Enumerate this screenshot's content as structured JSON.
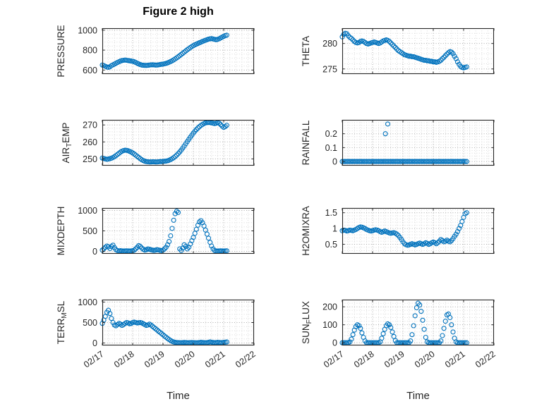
{
  "figure": {
    "title": "Figure 2 high",
    "xlabel": "Time",
    "xlim": [
      0,
      5
    ],
    "x_ticks": {
      "values": [
        0,
        1,
        2,
        3,
        4,
        5
      ],
      "labels": [
        "02/17",
        "02/18",
        "02/19",
        "02/20",
        "02/21",
        "02/22"
      ]
    },
    "marker_color": "#0072BD",
    "axis_color": "#262626",
    "grid_color": "#ababab",
    "minor_grid_color": "#d9d9d9"
  },
  "chart_data": [
    {
      "id": "pressure",
      "type": "scatter",
      "ylabel_parts": [
        {
          "text": "PRESSURE",
          "sub": false
        }
      ],
      "ylim": [
        560,
        1020
      ],
      "ytick_values": [
        600,
        800,
        1000
      ],
      "ytick_labels": [
        "600",
        "800",
        "1000"
      ],
      "series": {
        "x_start": 0,
        "x_step": 0.05,
        "values": [
          650,
          645,
          638,
          630,
          628,
          632,
          645,
          652,
          660,
          668,
          676,
          684,
          690,
          695,
          698,
          700,
          698,
          695,
          693,
          690,
          688,
          683,
          676,
          668,
          661,
          655,
          650,
          648,
          647,
          646,
          648,
          650,
          652,
          653,
          652,
          650,
          650,
          652,
          655,
          658,
          660,
          663,
          667,
          672,
          678,
          685,
          693,
          702,
          712,
          722,
          733,
          745,
          757,
          768,
          780,
          792,
          804,
          815,
          826,
          836,
          845,
          853,
          860,
          867,
          874,
          880,
          887,
          893,
          899,
          905,
          910,
          913,
          915,
          912,
          908,
          905,
          908,
          914,
          922,
          930,
          938,
          945,
          950
        ]
      }
    },
    {
      "id": "theta",
      "type": "scatter",
      "ylabel_parts": [
        {
          "text": "THETA",
          "sub": false
        }
      ],
      "ylim": [
        274,
        283
      ],
      "ytick_values": [
        275,
        280
      ],
      "ytick_labels": [
        "275",
        "280"
      ],
      "series": {
        "x_start": 0,
        "x_step": 0.05,
        "values": [
          281.3,
          281.8,
          282.0,
          281.9,
          281.5,
          281.2,
          281.0,
          280.7,
          280.4,
          280.2,
          280.1,
          280.2,
          280.4,
          280.5,
          280.4,
          280.2,
          280.0,
          279.9,
          280.0,
          280.1,
          280.2,
          280.3,
          280.2,
          280.1,
          280.0,
          280.1,
          280.3,
          280.5,
          280.6,
          280.7,
          280.6,
          280.4,
          280.1,
          279.8,
          279.5,
          279.2,
          278.9,
          278.6,
          278.4,
          278.2,
          278.0,
          277.8,
          277.7,
          277.6,
          277.5,
          277.5,
          277.4,
          277.4,
          277.3,
          277.2,
          277.1,
          277.0,
          276.9,
          276.8,
          276.7,
          276.7,
          276.6,
          276.6,
          276.5,
          276.5,
          276.4,
          276.4,
          276.3,
          276.4,
          276.5,
          276.7,
          277.0,
          277.3,
          277.6,
          277.9,
          278.2,
          278.4,
          278.3,
          278.0,
          277.5,
          277.0,
          276.4,
          275.9,
          275.5,
          275.3,
          275.2,
          275.3,
          275.4
        ]
      }
    },
    {
      "id": "air-temp",
      "type": "scatter",
      "ylabel_parts": [
        {
          "text": "AIR",
          "sub": false
        },
        {
          "text": "T",
          "sub": true
        },
        {
          "text": "EMP",
          "sub": false
        }
      ],
      "ylim": [
        246,
        273
      ],
      "ytick_values": [
        250,
        260,
        270
      ],
      "ytick_labels": [
        "250",
        "260",
        "270"
      ],
      "series": {
        "x_start": 0,
        "x_step": 0.05,
        "values": [
          250.5,
          250.2,
          250.0,
          249.8,
          249.9,
          250.1,
          250.4,
          250.8,
          251.3,
          251.9,
          252.6,
          253.3,
          254.0,
          254.5,
          254.9,
          255.1,
          255.0,
          254.8,
          254.4,
          254.0,
          253.5,
          252.9,
          252.2,
          251.5,
          250.8,
          250.1,
          249.5,
          249.0,
          248.6,
          248.4,
          248.3,
          248.2,
          248.2,
          248.3,
          248.3,
          248.2,
          248.2,
          248.3,
          248.4,
          248.4,
          248.5,
          248.6,
          248.7,
          248.9,
          249.2,
          249.6,
          250.1,
          250.7,
          251.4,
          252.2,
          253.1,
          254.1,
          255.2,
          256.4,
          257.6,
          258.9,
          260.2,
          261.5,
          262.8,
          264.0,
          265.2,
          266.3,
          267.3,
          268.2,
          269.0,
          269.7,
          270.3,
          270.8,
          271.2,
          271.4,
          271.5,
          271.4,
          271.2,
          271.0,
          270.8,
          271.0,
          271.3,
          271.0,
          270.2,
          269.3,
          268.6,
          269.0,
          269.8
        ]
      }
    },
    {
      "id": "rainfall",
      "type": "scatter",
      "ylabel_parts": [
        {
          "text": "RAINFALL",
          "sub": false
        }
      ],
      "ylim": [
        -0.03,
        0.3
      ],
      "ytick_values": [
        0,
        0.1,
        0.2
      ],
      "ytick_labels": [
        "0",
        "0.1",
        "0.2"
      ],
      "series": {
        "x_start": 0,
        "x_step": 0.05,
        "values": [
          0,
          0,
          0,
          0,
          0,
          0,
          0,
          0,
          0,
          0,
          0,
          0,
          0,
          0,
          0,
          0,
          0,
          0,
          0,
          0,
          0,
          0,
          0,
          0,
          0,
          0,
          0,
          0,
          0,
          0,
          0,
          0,
          0,
          0,
          0,
          0,
          0,
          0,
          0,
          0,
          0,
          0,
          0,
          0,
          0,
          0,
          0,
          0,
          0,
          0,
          0,
          0,
          0,
          0,
          0,
          0,
          0,
          0,
          0,
          0,
          0,
          0,
          0,
          0,
          0,
          0,
          0,
          0,
          0,
          0,
          0,
          0,
          0,
          0,
          0,
          0,
          0,
          0,
          0,
          0,
          0,
          0,
          0
        ]
      },
      "extra_points": [
        [
          1.42,
          0.2
        ],
        [
          1.5,
          0.27
        ]
      ]
    },
    {
      "id": "mixdepth",
      "type": "scatter",
      "ylabel_parts": [
        {
          "text": "MIXDEPTH",
          "sub": false
        }
      ],
      "ylim": [
        -60,
        1060
      ],
      "ytick_values": [
        0,
        500,
        1000
      ],
      "ytick_labels": [
        "0",
        "500",
        "1000"
      ],
      "series": {
        "x_start": 0,
        "x_step": 0.05,
        "values": [
          30,
          60,
          100,
          130,
          110,
          70,
          120,
          150,
          90,
          40,
          20,
          10,
          15,
          10,
          8,
          10,
          12,
          10,
          8,
          10,
          15,
          30,
          60,
          100,
          140,
          120,
          80,
          50,
          30,
          40,
          60,
          50,
          40,
          30,
          25,
          30,
          40,
          35,
          25,
          20,
          30,
          60,
          100,
          160,
          240,
          380,
          560,
          760,
          920,
          980,
          950,
          60,
          20,
          80,
          160,
          120,
          60,
          100,
          180,
          260,
          340,
          440,
          540,
          640,
          720,
          750,
          700,
          620,
          520,
          420,
          320,
          220,
          130,
          60,
          20,
          10,
          8,
          10,
          12,
          10,
          8,
          10,
          12
        ]
      }
    },
    {
      "id": "h2omixra",
      "type": "scatter",
      "ylabel_parts": [
        {
          "text": "H2OMIXRA",
          "sub": false
        }
      ],
      "ylim": [
        0.2,
        1.65
      ],
      "ytick_values": [
        0.5,
        1,
        1.5
      ],
      "ytick_labels": [
        "0.5",
        "1",
        "1.5"
      ],
      "series": {
        "x_start": 0,
        "x_step": 0.05,
        "values": [
          0.93,
          0.95,
          0.94,
          0.92,
          0.93,
          0.95,
          0.94,
          0.93,
          0.95,
          0.97,
          1.0,
          1.03,
          1.05,
          1.04,
          1.02,
          1.0,
          0.97,
          0.95,
          0.93,
          0.92,
          0.93,
          0.95,
          0.96,
          0.95,
          0.93,
          0.9,
          0.88,
          0.9,
          0.92,
          0.9,
          0.88,
          0.86,
          0.85,
          0.86,
          0.87,
          0.85,
          0.82,
          0.78,
          0.72,
          0.65,
          0.58,
          0.52,
          0.49,
          0.47,
          0.48,
          0.5,
          0.52,
          0.5,
          0.48,
          0.5,
          0.52,
          0.54,
          0.52,
          0.5,
          0.52,
          0.55,
          0.53,
          0.5,
          0.52,
          0.55,
          0.57,
          0.55,
          0.52,
          0.55,
          0.6,
          0.65,
          0.62,
          0.58,
          0.6,
          0.63,
          0.6,
          0.58,
          0.62,
          0.68,
          0.75,
          0.82,
          0.9,
          1.0,
          1.1,
          1.22,
          1.35,
          1.47,
          1.5
        ]
      }
    },
    {
      "id": "terr-msl",
      "type": "scatter",
      "ylabel_parts": [
        {
          "text": "TERR",
          "sub": false
        },
        {
          "text": "M",
          "sub": true
        },
        {
          "text": "SL",
          "sub": false
        }
      ],
      "ylim": [
        -60,
        1060
      ],
      "ytick_values": [
        0,
        500,
        1000
      ],
      "ytick_labels": [
        "0",
        "500",
        "1000"
      ],
      "series": {
        "x_start": 0,
        "x_step": 0.05,
        "values": [
          480,
          560,
          650,
          750,
          800,
          720,
          600,
          500,
          440,
          420,
          450,
          480,
          460,
          430,
          450,
          480,
          500,
          490,
          470,
          480,
          500,
          510,
          500,
          490,
          495,
          500,
          490,
          470,
          450,
          430,
          440,
          460,
          440,
          410,
          380,
          350,
          320,
          290,
          260,
          230,
          200,
          170,
          140,
          110,
          85,
          60,
          40,
          25,
          15,
          10,
          8,
          6,
          5,
          8,
          12,
          10,
          6,
          5,
          8,
          10,
          8,
          5,
          4,
          6,
          10,
          15,
          12,
          8,
          5,
          8,
          15,
          25,
          20,
          12,
          8,
          10,
          15,
          12,
          8,
          10,
          15,
          20,
          25
        ]
      }
    },
    {
      "id": "sun-flux",
      "type": "scatter",
      "ylabel_parts": [
        {
          "text": "SUN",
          "sub": false
        },
        {
          "text": "F",
          "sub": true
        },
        {
          "text": "LUX",
          "sub": false
        }
      ],
      "ylim": [
        -15,
        240
      ],
      "ytick_values": [
        0,
        100,
        200
      ],
      "ytick_labels": [
        "0",
        "100",
        "200"
      ],
      "series": {
        "x_start": 0,
        "x_step": 0.05,
        "values": [
          0,
          0,
          0,
          0,
          0,
          5,
          20,
          45,
          70,
          90,
          100,
          95,
          80,
          55,
          30,
          10,
          0,
          0,
          0,
          0,
          0,
          0,
          0,
          0,
          0,
          5,
          25,
          50,
          75,
          95,
          105,
          100,
          85,
          60,
          35,
          12,
          0,
          0,
          0,
          0,
          0,
          0,
          0,
          0,
          0,
          10,
          45,
          95,
          150,
          195,
          220,
          210,
          175,
          125,
          75,
          30,
          5,
          0,
          0,
          0,
          0,
          0,
          0,
          0,
          0,
          10,
          40,
          80,
          120,
          155,
          160,
          140,
          100,
          60,
          25,
          5,
          0,
          0,
          0,
          0,
          0,
          0,
          0
        ]
      }
    }
  ]
}
